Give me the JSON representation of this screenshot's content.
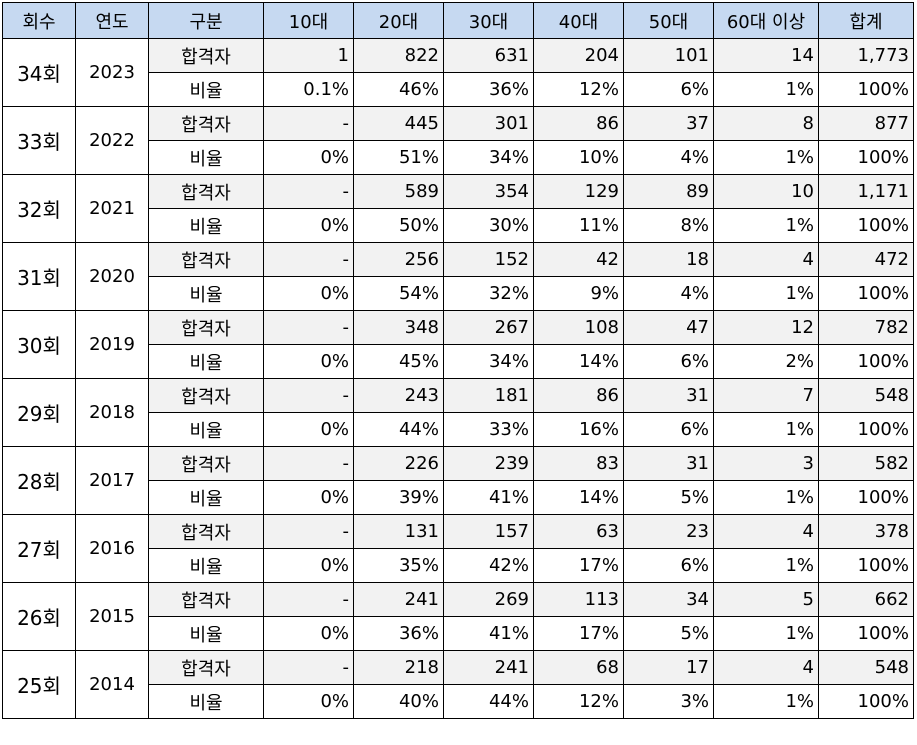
{
  "table": {
    "header": [
      "회수",
      "연도",
      "구분",
      "10대",
      "20대",
      "30대",
      "40대",
      "50대",
      "60대 이상",
      "합계"
    ],
    "groups": [
      {
        "round": "34회",
        "year": "2023",
        "rows": [
          [
            "합격자",
            "1",
            "822",
            "631",
            "204",
            "101",
            "14",
            "1,773"
          ],
          [
            "비율",
            "0.1%",
            "46%",
            "36%",
            "12%",
            "6%",
            "1%",
            "100%"
          ]
        ]
      },
      {
        "round": "33회",
        "year": "2022",
        "rows": [
          [
            "합격자",
            "-",
            "445",
            "301",
            "86",
            "37",
            "8",
            "877"
          ],
          [
            "비율",
            "0%",
            "51%",
            "34%",
            "10%",
            "4%",
            "1%",
            "100%"
          ]
        ]
      },
      {
        "round": "32회",
        "year": "2021",
        "rows": [
          [
            "합격자",
            "-",
            "589",
            "354",
            "129",
            "89",
            "10",
            "1,171"
          ],
          [
            "비율",
            "0%",
            "50%",
            "30%",
            "11%",
            "8%",
            "1%",
            "100%"
          ]
        ]
      },
      {
        "round": "31회",
        "year": "2020",
        "rows": [
          [
            "합격자",
            "-",
            "256",
            "152",
            "42",
            "18",
            "4",
            "472"
          ],
          [
            "비율",
            "0%",
            "54%",
            "32%",
            "9%",
            "4%",
            "1%",
            "100%"
          ]
        ]
      },
      {
        "round": "30회",
        "year": "2019",
        "rows": [
          [
            "합격자",
            "-",
            "348",
            "267",
            "108",
            "47",
            "12",
            "782"
          ],
          [
            "비율",
            "0%",
            "45%",
            "34%",
            "14%",
            "6%",
            "2%",
            "100%"
          ]
        ]
      },
      {
        "round": "29회",
        "year": "2018",
        "rows": [
          [
            "합격자",
            "-",
            "243",
            "181",
            "86",
            "31",
            "7",
            "548"
          ],
          [
            "비율",
            "0%",
            "44%",
            "33%",
            "16%",
            "6%",
            "1%",
            "100%"
          ]
        ]
      },
      {
        "round": "28회",
        "year": "2017",
        "rows": [
          [
            "합격자",
            "-",
            "226",
            "239",
            "83",
            "31",
            "3",
            "582"
          ],
          [
            "비율",
            "0%",
            "39%",
            "41%",
            "14%",
            "5%",
            "1%",
            "100%"
          ]
        ]
      },
      {
        "round": "27회",
        "year": "2016",
        "rows": [
          [
            "합격자",
            "-",
            "131",
            "157",
            "63",
            "23",
            "4",
            "378"
          ],
          [
            "비율",
            "0%",
            "35%",
            "42%",
            "17%",
            "6%",
            "1%",
            "100%"
          ]
        ]
      },
      {
        "round": "26회",
        "year": "2015",
        "rows": [
          [
            "합격자",
            "-",
            "241",
            "269",
            "113",
            "34",
            "5",
            "662"
          ],
          [
            "비율",
            "0%",
            "36%",
            "41%",
            "17%",
            "5%",
            "1%",
            "100%"
          ]
        ]
      },
      {
        "round": "25회",
        "year": "2014",
        "rows": [
          [
            "합격자",
            "-",
            "218",
            "241",
            "68",
            "17",
            "4",
            "548"
          ],
          [
            "비율",
            "0%",
            "40%",
            "44%",
            "12%",
            "3%",
            "1%",
            "100%"
          ]
        ]
      }
    ]
  }
}
